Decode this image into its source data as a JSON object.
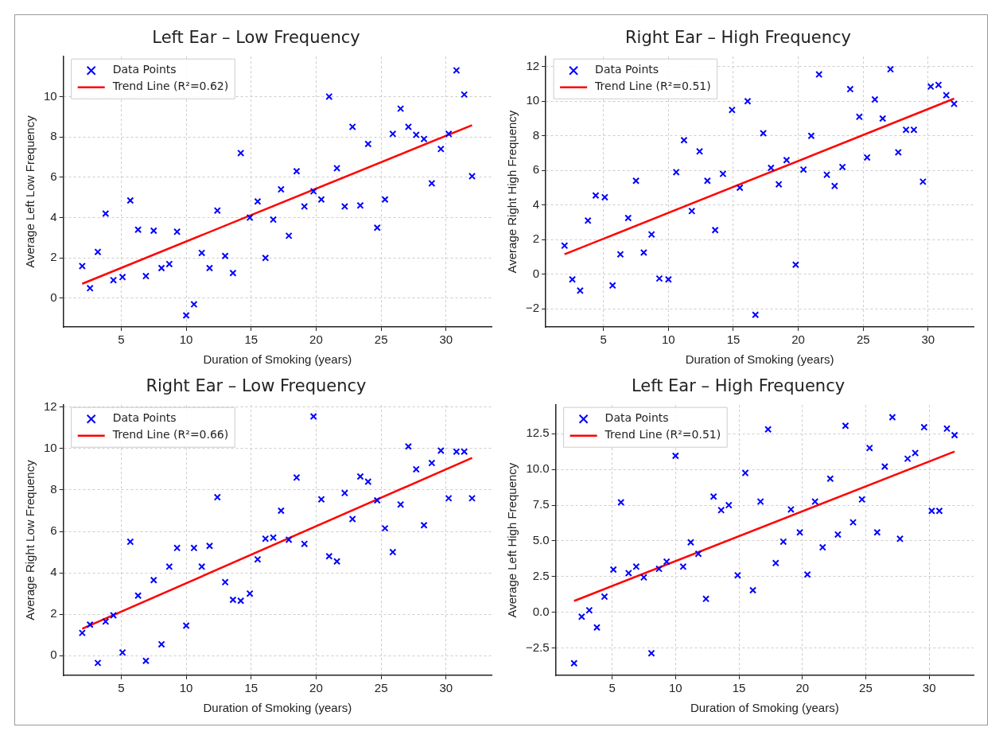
{
  "chart_data": [
    {
      "type": "scatter",
      "title": "Left Ear – Low Frequency",
      "xlabel": "Duration of Smoking (years)",
      "ylabel": "Average Left Low Frequency",
      "xlim": [
        0.55,
        33.5
      ],
      "xticks": [
        5,
        10,
        15,
        20,
        25,
        30
      ],
      "ylim": [
        -1.42,
        11.98
      ],
      "yticks": [
        0,
        2,
        4,
        6,
        8,
        10
      ],
      "grid": true,
      "legend": "top left",
      "series": [
        {
          "name": "Data Points",
          "marker": "cross",
          "color": "#0000ff",
          "x": [
            2.0,
            2.6,
            3.2,
            3.8,
            4.4,
            5.1,
            5.7,
            6.3,
            6.9,
            7.5,
            8.1,
            8.7,
            9.3,
            10.0,
            10.6,
            11.2,
            11.8,
            12.4,
            13.0,
            13.6,
            14.2,
            14.9,
            15.5,
            16.1,
            16.7,
            17.3,
            17.9,
            18.5,
            19.1,
            19.8,
            20.4,
            21.0,
            21.6,
            22.2,
            22.8,
            23.4,
            24.0,
            24.7,
            25.3,
            25.9,
            26.5,
            27.1,
            27.7,
            28.3,
            28.9,
            29.6,
            30.2,
            30.8,
            31.4,
            32.0
          ],
          "values": [
            1.6,
            0.5,
            2.3,
            4.2,
            0.9,
            1.05,
            4.85,
            3.4,
            1.1,
            3.35,
            1.5,
            1.7,
            3.3,
            -0.85,
            -0.3,
            2.25,
            1.5,
            4.35,
            2.1,
            1.25,
            7.2,
            4.0,
            4.8,
            2.0,
            3.9,
            5.4,
            3.1,
            6.3,
            4.55,
            5.3,
            4.9,
            10.0,
            6.45,
            4.55,
            8.5,
            4.6,
            7.65,
            3.5,
            4.9,
            8.15,
            9.4,
            8.5,
            8.1,
            7.9,
            5.7,
            7.4,
            8.15,
            11.3,
            10.1,
            6.05
          ]
        },
        {
          "name": "Trend Line (R²=0.62)",
          "type": "line",
          "marker": "none",
          "color": "#ff0000",
          "x": [
            2,
            32
          ],
          "values": [
            0.72,
            8.58
          ]
        }
      ]
    },
    {
      "type": "scatter",
      "title": "Right Ear – High Frequency",
      "xlabel": "Duration of Smoking (years)",
      "ylabel": "Average Right High Frequency",
      "xlim": [
        0.55,
        33.5
      ],
      "xticks": [
        5,
        10,
        15,
        20,
        25,
        30
      ],
      "ylim": [
        -3.05,
        12.58
      ],
      "yticks": [
        {
          "value": -2,
          "label": "−2"
        },
        0,
        2,
        4,
        6,
        8,
        10,
        12
      ],
      "grid": true,
      "legend": "top left",
      "series": [
        {
          "name": "Data Points",
          "marker": "cross",
          "color": "#0000ff",
          "x": [
            2.0,
            2.6,
            3.2,
            3.8,
            4.4,
            5.1,
            5.7,
            6.3,
            6.9,
            7.5,
            8.1,
            8.7,
            9.3,
            10.0,
            10.6,
            11.2,
            11.8,
            12.4,
            13.0,
            13.6,
            14.2,
            14.9,
            15.5,
            16.1,
            16.7,
            17.3,
            17.9,
            18.5,
            19.1,
            19.8,
            20.4,
            21.0,
            21.6,
            22.2,
            22.8,
            23.4,
            24.0,
            24.7,
            25.3,
            25.9,
            26.5,
            27.1,
            27.7,
            28.3,
            28.9,
            29.6,
            30.2,
            30.8,
            31.4,
            32.0
          ],
          "values": [
            1.65,
            -0.3,
            -0.95,
            3.1,
            4.55,
            4.45,
            -0.65,
            1.15,
            3.25,
            5.4,
            1.25,
            2.3,
            -0.25,
            -0.3,
            5.9,
            7.75,
            3.65,
            7.1,
            5.4,
            2.55,
            5.8,
            9.5,
            5.0,
            10.0,
            -2.35,
            8.15,
            6.15,
            5.2,
            6.6,
            0.55,
            6.05,
            8.0,
            11.55,
            5.75,
            5.1,
            6.2,
            10.7,
            9.1,
            6.75,
            10.1,
            9.0,
            11.85,
            7.05,
            8.35,
            8.35,
            5.35,
            10.85,
            10.95,
            10.35,
            9.85
          ]
        },
        {
          "name": "Trend Line (R²=0.51)",
          "type": "line",
          "marker": "none",
          "color": "#ff0000",
          "x": [
            2,
            32
          ],
          "values": [
            1.15,
            10.15
          ]
        }
      ]
    },
    {
      "type": "scatter",
      "title": "Right Ear – Low Frequency",
      "xlabel": "Duration of Smoking (years)",
      "ylabel": "Average Right Low Frequency",
      "xlim": [
        0.55,
        33.5
      ],
      "xticks": [
        5,
        10,
        15,
        20,
        25,
        30
      ],
      "ylim": [
        -0.95,
        12.1
      ],
      "yticks": [
        0,
        2,
        4,
        6,
        8,
        10,
        12
      ],
      "grid": true,
      "legend": "top left",
      "series": [
        {
          "name": "Data Points",
          "marker": "cross",
          "color": "#0000ff",
          "x": [
            2.0,
            2.6,
            3.2,
            3.8,
            4.4,
            5.1,
            5.7,
            6.3,
            6.9,
            7.5,
            8.1,
            8.7,
            9.3,
            10.0,
            10.6,
            11.2,
            11.8,
            12.4,
            13.0,
            13.6,
            14.2,
            14.9,
            15.5,
            16.1,
            16.7,
            17.3,
            17.9,
            18.5,
            19.1,
            19.8,
            20.4,
            21.0,
            21.6,
            22.2,
            22.8,
            23.4,
            24.0,
            24.7,
            25.3,
            25.9,
            26.5,
            27.1,
            27.7,
            28.3,
            28.9,
            29.6,
            30.2,
            30.8,
            31.4,
            32.0
          ],
          "values": [
            1.1,
            1.5,
            -0.35,
            1.65,
            1.95,
            0.15,
            5.5,
            2.9,
            -0.25,
            3.65,
            0.55,
            4.3,
            5.2,
            1.45,
            5.2,
            4.3,
            5.3,
            7.65,
            3.55,
            2.7,
            2.65,
            3.0,
            4.65,
            5.65,
            5.7,
            7.0,
            5.6,
            8.6,
            5.4,
            11.55,
            7.55,
            4.8,
            4.55,
            7.85,
            6.6,
            8.65,
            8.4,
            7.5,
            6.15,
            5.0,
            7.3,
            10.1,
            9.0,
            6.3,
            9.3,
            9.9,
            7.6,
            9.85,
            9.85,
            7.6
          ]
        },
        {
          "name": "Trend Line (R²=0.66)",
          "type": "line",
          "marker": "none",
          "color": "#ff0000",
          "x": [
            2,
            32
          ],
          "values": [
            1.3,
            9.55
          ]
        }
      ]
    },
    {
      "type": "scatter",
      "title": "Left Ear – High Frequency",
      "xlabel": "Duration of Smoking (years)",
      "ylabel": "Average Left High Frequency",
      "xlim": [
        0.55,
        33.5
      ],
      "xticks": [
        5,
        10,
        15,
        20,
        25,
        30
      ],
      "ylim": [
        -4.4,
        14.5
      ],
      "yticks": [
        {
          "value": -2.5,
          "label": "−2.5"
        },
        {
          "value": 0,
          "label": "0.0"
        },
        2.5,
        {
          "value": 5,
          "label": "5.0"
        },
        7.5,
        {
          "value": 10,
          "label": "10.0"
        },
        12.5
      ],
      "grid": true,
      "legend": "top left",
      "series": [
        {
          "name": "Data Points",
          "marker": "cross",
          "color": "#0000ff",
          "x": [
            2.0,
            2.6,
            3.2,
            3.8,
            4.4,
            5.1,
            5.7,
            6.3,
            6.9,
            7.5,
            8.1,
            8.7,
            9.3,
            10.0,
            10.6,
            11.2,
            11.8,
            12.4,
            13.0,
            13.6,
            14.2,
            14.9,
            15.5,
            16.1,
            16.7,
            17.3,
            17.9,
            18.5,
            19.1,
            19.8,
            20.4,
            21.0,
            21.6,
            22.2,
            22.8,
            23.4,
            24.0,
            24.7,
            25.3,
            25.9,
            26.5,
            27.1,
            27.7,
            28.3,
            28.9,
            29.6,
            30.2,
            30.8,
            31.4,
            32.0
          ],
          "values": [
            -3.55,
            -0.3,
            0.15,
            -1.05,
            1.1,
            3.0,
            7.7,
            2.75,
            3.2,
            2.45,
            -2.85,
            3.05,
            3.55,
            10.95,
            3.2,
            4.9,
            4.1,
            0.95,
            8.1,
            7.15,
            7.5,
            2.6,
            9.75,
            1.55,
            7.75,
            12.8,
            3.45,
            4.95,
            7.2,
            5.6,
            2.65,
            7.75,
            4.55,
            9.35,
            5.45,
            13.05,
            6.3,
            7.9,
            11.5,
            5.6,
            10.2,
            13.65,
            5.15,
            10.75,
            11.15,
            12.95,
            7.1,
            7.1,
            12.85,
            12.4
          ]
        },
        {
          "name": "Trend Line (R²=0.51)",
          "type": "line",
          "marker": "none",
          "color": "#ff0000",
          "x": [
            2,
            32
          ],
          "values": [
            0.8,
            11.25
          ]
        }
      ]
    }
  ]
}
